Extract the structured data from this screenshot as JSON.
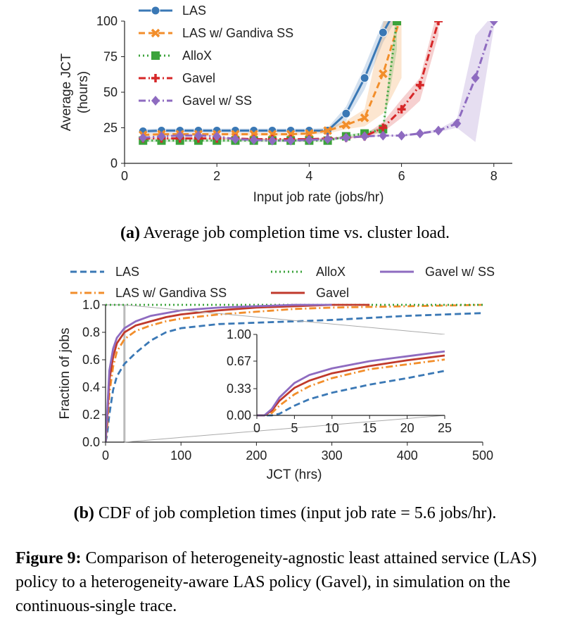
{
  "chart_data": [
    {
      "type": "line",
      "xlabel": "Input job rate (jobs/hr)",
      "ylabel": "Average JCT\n(hours)",
      "xlim": [
        0,
        8.4
      ],
      "ylim": [
        0,
        100
      ],
      "xticks": [
        "0",
        "2",
        "4",
        "6",
        "8"
      ],
      "yticks": [
        "0",
        "25",
        "50",
        "75",
        "100"
      ],
      "legend": "top-left",
      "series": [
        {
          "name": "LAS",
          "color": "#3a78b5",
          "dash": "solid",
          "marker": "circle",
          "x": [
            0.4,
            0.8,
            1.2,
            1.6,
            2.0,
            2.4,
            2.8,
            3.2,
            3.6,
            4.0,
            4.4,
            4.8,
            5.2,
            5.6,
            6.0
          ],
          "y": [
            22.5,
            23,
            23,
            23,
            23,
            23,
            23,
            23,
            23,
            23,
            23,
            35,
            60,
            92,
            115
          ],
          "band_low": [
            21,
            21.5,
            21.5,
            21.5,
            21.5,
            21.5,
            21.5,
            21.5,
            21.5,
            21.5,
            21.5,
            30,
            52,
            85,
            108
          ],
          "band_high": [
            24,
            24.5,
            24.5,
            24.5,
            24.5,
            24.5,
            24.5,
            24.5,
            24.5,
            24.5,
            25,
            40,
            68,
            100,
            122
          ]
        },
        {
          "name": "LAS w/ Gandiva SS",
          "color": "#f28e2b",
          "dash": "dashed",
          "marker": "x",
          "x": [
            0.4,
            0.8,
            1.2,
            1.6,
            2.0,
            2.4,
            2.8,
            3.2,
            3.6,
            4.0,
            4.4,
            4.8,
            5.2,
            5.6,
            6.0
          ],
          "y": [
            20,
            20.5,
            20.5,
            20.5,
            20.5,
            20.5,
            20.5,
            20.5,
            20.5,
            21,
            23,
            27,
            32,
            63,
            105
          ],
          "band_low": [
            19,
            19.5,
            19.5,
            19.5,
            19.5,
            19.5,
            19.5,
            19.5,
            19.5,
            20,
            21,
            24,
            26,
            35,
            60
          ],
          "band_high": [
            21,
            21.5,
            21.5,
            21.5,
            21.5,
            21.5,
            21.5,
            21.5,
            21.5,
            22,
            25,
            30,
            38,
            98,
            150
          ]
        },
        {
          "name": "AlloX",
          "color": "#3ba33b",
          "dash": "dotted",
          "marker": "square",
          "x": [
            0.4,
            0.8,
            1.2,
            1.6,
            2.0,
            2.4,
            2.8,
            3.2,
            3.6,
            4.0,
            4.4,
            4.8,
            5.2,
            5.6,
            5.9
          ],
          "y": [
            16,
            16,
            16,
            16,
            16,
            16,
            16,
            16,
            16,
            16,
            16,
            19,
            21,
            24,
            100
          ],
          "band_low": [
            15,
            15,
            15,
            15,
            15,
            15,
            15,
            15,
            15,
            15,
            15,
            18,
            20,
            22,
            80
          ],
          "band_high": [
            17,
            17,
            17,
            17,
            17,
            17,
            17,
            17,
            17,
            17,
            17,
            20,
            22,
            26,
            110
          ]
        },
        {
          "name": "Gavel",
          "color": "#d62728",
          "dash": "dashdot",
          "marker": "plus",
          "x": [
            0.4,
            0.8,
            1.2,
            1.6,
            2.0,
            2.4,
            2.8,
            3.2,
            3.6,
            4.0,
            4.4,
            4.8,
            5.2,
            5.6,
            6.0,
            6.4,
            6.8
          ],
          "y": [
            17.5,
            17.5,
            17.5,
            17.5,
            17.5,
            17.5,
            17,
            17,
            17,
            17,
            17.5,
            18,
            19,
            25,
            38,
            55,
            100
          ],
          "band_low": [
            17,
            17,
            17,
            17,
            17,
            17,
            16.5,
            16.5,
            16.5,
            16.5,
            17,
            17.5,
            18,
            22,
            32,
            44,
            90
          ],
          "band_high": [
            18,
            18,
            18,
            18,
            18,
            18,
            17.5,
            17.5,
            17.5,
            17.5,
            18,
            18.5,
            20,
            29,
            45,
            60,
            110
          ]
        },
        {
          "name": "Gavel w/ SS",
          "color": "#8e6bc0",
          "dash": "dashdot",
          "marker": "diamond",
          "x": [
            0.4,
            0.8,
            1.2,
            1.6,
            2.0,
            2.4,
            2.8,
            3.2,
            3.6,
            4.0,
            4.4,
            4.8,
            5.2,
            5.6,
            6.0,
            6.4,
            6.8,
            7.2,
            7.6,
            8.0
          ],
          "y": [
            18,
            19,
            19.5,
            19.5,
            19,
            17,
            16.5,
            16,
            16,
            16.5,
            17,
            18,
            19,
            19.5,
            19.5,
            21,
            23,
            28,
            60,
            100
          ],
          "band_low": [
            17.5,
            18.5,
            19,
            19,
            18.5,
            16.5,
            16,
            15.5,
            15.5,
            16,
            16.5,
            17.5,
            18.5,
            19,
            19,
            20,
            22,
            25,
            15,
            95
          ],
          "band_high": [
            18.5,
            19.5,
            20,
            20,
            19.5,
            17.5,
            17,
            16.5,
            16.5,
            17,
            17.5,
            18.5,
            19.5,
            20,
            20,
            22,
            24,
            31,
            90,
            105
          ]
        }
      ]
    },
    {
      "type": "line",
      "xlabel": "JCT (hrs)",
      "ylabel": "Fraction of jobs",
      "xlim": [
        0,
        500
      ],
      "ylim": [
        0,
        1.0
      ],
      "xticks": [
        "0",
        "100",
        "200",
        "300",
        "400",
        "500"
      ],
      "yticks": [
        "0.0",
        "0.2",
        "0.4",
        "0.6",
        "0.8",
        "1.0"
      ],
      "legend": "top",
      "series": [
        {
          "name": "LAS",
          "color": "#3a78b5",
          "dash": "dashed",
          "x": [
            0,
            2,
            5,
            10,
            15,
            25,
            40,
            60,
            80,
            100,
            150,
            200,
            300,
            400,
            500
          ],
          "y": [
            0,
            0.05,
            0.2,
            0.38,
            0.48,
            0.57,
            0.65,
            0.74,
            0.8,
            0.83,
            0.86,
            0.87,
            0.89,
            0.92,
            0.94
          ]
        },
        {
          "name": "LAS w/ Gandiva SS",
          "color": "#f28e2b",
          "dash": "dashdot",
          "x": [
            0,
            2,
            5,
            10,
            15,
            25,
            40,
            60,
            80,
            100,
            150,
            200,
            250,
            300,
            400,
            500
          ],
          "y": [
            0,
            0.1,
            0.35,
            0.55,
            0.66,
            0.75,
            0.81,
            0.85,
            0.88,
            0.9,
            0.93,
            0.95,
            0.97,
            0.98,
            0.99,
            1.0
          ]
        },
        {
          "name": "AlloX",
          "color": "#3ba33b",
          "dash": "dotted",
          "x": [
            0,
            350,
            500
          ],
          "y": [
            1.0,
            1.0,
            1.0
          ]
        },
        {
          "name": "Gavel",
          "color": "#c0392b",
          "dash": "solid",
          "x": [
            0,
            2,
            5,
            10,
            15,
            25,
            40,
            60,
            80,
            100,
            150,
            200,
            250,
            300,
            350
          ],
          "y": [
            0,
            0.15,
            0.45,
            0.62,
            0.72,
            0.8,
            0.85,
            0.88,
            0.91,
            0.93,
            0.96,
            0.98,
            0.99,
            1.0,
            1.0
          ]
        },
        {
          "name": "Gavel w/ SS",
          "color": "#8e6bc0",
          "dash": "solid",
          "x": [
            0,
            2,
            5,
            10,
            15,
            25,
            40,
            60,
            80,
            100,
            150,
            200,
            250,
            300
          ],
          "y": [
            0,
            0.2,
            0.52,
            0.68,
            0.76,
            0.83,
            0.88,
            0.92,
            0.94,
            0.96,
            0.98,
            0.99,
            1.0,
            1.0
          ]
        }
      ],
      "inset": {
        "xlim": [
          0,
          25
        ],
        "ylim": [
          0,
          1.0
        ],
        "xticks": [
          "0",
          "5",
          "10",
          "15",
          "20",
          "25"
        ],
        "yticks": [
          "0.00",
          "0.33",
          "0.67",
          "1.00"
        ],
        "series": [
          {
            "name": "LAS",
            "x": [
              0,
              2,
              3,
              5,
              7,
              10,
              15,
              20,
              25
            ],
            "y": [
              0,
              0,
              0.02,
              0.12,
              0.2,
              0.28,
              0.38,
              0.46,
              0.55
            ]
          },
          {
            "name": "LAS w/ Gandiva SS",
            "x": [
              0,
              1,
              2,
              3,
              5,
              7,
              10,
              15,
              20,
              25
            ],
            "y": [
              0,
              0,
              0.03,
              0.12,
              0.26,
              0.36,
              0.46,
              0.57,
              0.63,
              0.69
            ]
          },
          {
            "name": "Gavel",
            "x": [
              0,
              1,
              2,
              3,
              5,
              7,
              10,
              15,
              20,
              25
            ],
            "y": [
              0,
              0,
              0.06,
              0.18,
              0.34,
              0.43,
              0.52,
              0.61,
              0.68,
              0.74
            ]
          },
          {
            "name": "Gavel w/ SS",
            "x": [
              0,
              1,
              2,
              3,
              5,
              7,
              10,
              15,
              20,
              25
            ],
            "y": [
              0,
              0,
              0.08,
              0.22,
              0.4,
              0.5,
              0.58,
              0.67,
              0.73,
              0.79
            ]
          }
        ]
      }
    }
  ],
  "captions": {
    "a_label": "(a)",
    "a_text": " Average job completion time vs. cluster load.",
    "b_label": "(b)",
    "b_text": " CDF of job completion times (input job rate = 5.6 jobs/hr).",
    "fig_label": "Figure 9:",
    "fig_text": " Comparison of heterogeneity-agnostic least attained service (LAS) policy to a heterogeneity-aware LAS policy (Gavel), in simulation on the continuous-single trace."
  }
}
